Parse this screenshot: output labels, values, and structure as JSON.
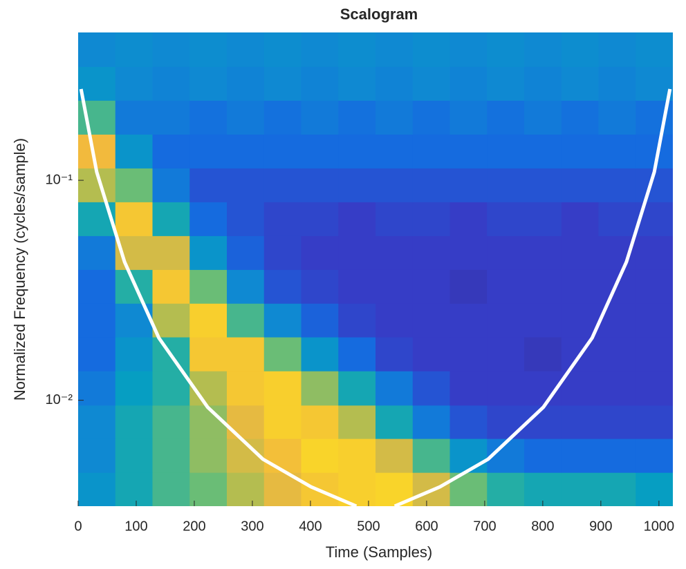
{
  "chart_data": {
    "type": "scalogram",
    "title": "Scalogram",
    "x_label": "Time (Samples)",
    "y_label": "Normalized Frequency (cycles/sample)",
    "xlim": [
      0,
      1024
    ],
    "ylim": [
      0.0033,
      0.47
    ],
    "y_scale": "log",
    "xticks": [
      0,
      100,
      200,
      300,
      400,
      500,
      600,
      700,
      800,
      900,
      1000
    ],
    "yticks": [
      {
        "value": 0.01,
        "label": "10⁻²"
      },
      {
        "value": 0.1,
        "label": "10⁻¹"
      }
    ],
    "colormap": "parula",
    "clim": [
      0,
      1
    ],
    "x_edges": [
      0,
      64,
      128,
      192,
      256,
      320,
      384,
      448,
      512,
      576,
      640,
      704,
      768,
      832,
      896,
      960,
      1024
    ],
    "y_edges": [
      0.0033,
      0.0047,
      0.0067,
      0.0095,
      0.0136,
      0.0194,
      0.0276,
      0.0393,
      0.056,
      0.0798,
      0.1137,
      0.162,
      0.231,
      0.329,
      0.47
    ],
    "values": [
      [
        0.35,
        0.45,
        0.55,
        0.6,
        0.7,
        0.78,
        0.85,
        0.88,
        0.9,
        0.75,
        0.6,
        0.5,
        0.45,
        0.45,
        0.45,
        0.4
      ],
      [
        0.3,
        0.45,
        0.55,
        0.65,
        0.75,
        0.82,
        0.9,
        0.88,
        0.75,
        0.55,
        0.35,
        0.25,
        0.2,
        0.2,
        0.2,
        0.2
      ],
      [
        0.3,
        0.45,
        0.55,
        0.65,
        0.78,
        0.88,
        0.85,
        0.7,
        0.45,
        0.25,
        0.15,
        0.12,
        0.12,
        0.12,
        0.12,
        0.12
      ],
      [
        0.25,
        0.4,
        0.5,
        0.7,
        0.85,
        0.88,
        0.65,
        0.45,
        0.25,
        0.15,
        0.1,
        0.1,
        0.1,
        0.1,
        0.1,
        0.1
      ],
      [
        0.2,
        0.35,
        0.5,
        0.85,
        0.85,
        0.6,
        0.35,
        0.2,
        0.12,
        0.1,
        0.1,
        0.1,
        0.08,
        0.1,
        0.1,
        0.1
      ],
      [
        0.2,
        0.3,
        0.7,
        0.88,
        0.55,
        0.3,
        0.18,
        0.12,
        0.1,
        0.1,
        0.1,
        0.1,
        0.1,
        0.1,
        0.1,
        0.1
      ],
      [
        0.2,
        0.5,
        0.85,
        0.6,
        0.3,
        0.15,
        0.12,
        0.1,
        0.1,
        0.1,
        0.08,
        0.1,
        0.1,
        0.1,
        0.1,
        0.1
      ],
      [
        0.25,
        0.75,
        0.75,
        0.35,
        0.18,
        0.12,
        0.1,
        0.1,
        0.1,
        0.1,
        0.1,
        0.1,
        0.1,
        0.1,
        0.1,
        0.1
      ],
      [
        0.45,
        0.85,
        0.45,
        0.2,
        0.15,
        0.12,
        0.12,
        0.1,
        0.12,
        0.12,
        0.1,
        0.12,
        0.12,
        0.1,
        0.12,
        0.12
      ],
      [
        0.7,
        0.6,
        0.25,
        0.15,
        0.15,
        0.15,
        0.15,
        0.15,
        0.15,
        0.15,
        0.15,
        0.15,
        0.15,
        0.15,
        0.15,
        0.15
      ],
      [
        0.8,
        0.35,
        0.2,
        0.2,
        0.2,
        0.2,
        0.2,
        0.2,
        0.2,
        0.2,
        0.2,
        0.2,
        0.2,
        0.2,
        0.2,
        0.2
      ],
      [
        0.55,
        0.25,
        0.25,
        0.22,
        0.25,
        0.22,
        0.25,
        0.22,
        0.25,
        0.22,
        0.25,
        0.22,
        0.25,
        0.22,
        0.25,
        0.22
      ],
      [
        0.35,
        0.3,
        0.28,
        0.3,
        0.28,
        0.3,
        0.28,
        0.3,
        0.28,
        0.3,
        0.28,
        0.3,
        0.28,
        0.3,
        0.28,
        0.3
      ],
      [
        0.3,
        0.32,
        0.3,
        0.32,
        0.3,
        0.32,
        0.3,
        0.32,
        0.3,
        0.32,
        0.3,
        0.32,
        0.3,
        0.32,
        0.3,
        0.32
      ]
    ],
    "cone_of_influence": {
      "color": "#ffffff",
      "x": [
        5,
        32,
        80,
        139,
        223,
        318,
        401,
        479,
        512,
        545,
        623,
        706,
        801,
        885,
        944,
        992,
        1019
      ],
      "y": [
        0.26,
        0.109,
        0.0425,
        0.0192,
        0.0093,
        0.0054,
        0.00404,
        0.0033,
        null,
        0.0033,
        0.00404,
        0.0054,
        0.0093,
        0.0192,
        0.0425,
        0.109,
        0.26
      ]
    }
  }
}
